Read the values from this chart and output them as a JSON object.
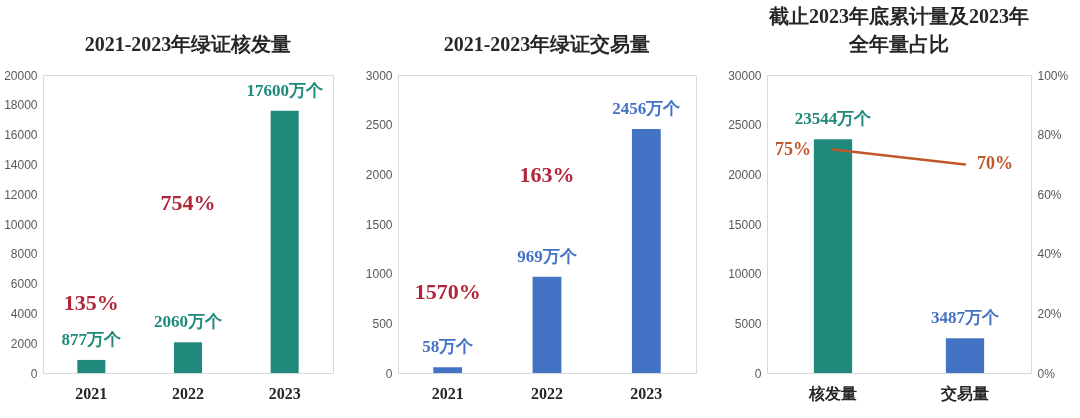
{
  "chart_data": [
    {
      "type": "bar",
      "title": "2021-2023年绿证核发量",
      "categories": [
        "2021",
        "2022",
        "2023"
      ],
      "values": [
        877,
        2060,
        17600
      ],
      "color": "#1f8a7b",
      "value_labels": [
        "877万个",
        "2060万个",
        "17600万个"
      ],
      "ylim": [
        0,
        20000
      ],
      "yticks": [
        0,
        2000,
        4000,
        6000,
        8000,
        10000,
        12000,
        14000,
        16000,
        18000,
        20000
      ],
      "annotations": [
        "135%",
        "754%"
      ]
    },
    {
      "type": "bar",
      "title": "2021-2023年绿证交易量",
      "categories": [
        "2021",
        "2022",
        "2023"
      ],
      "values": [
        58,
        969,
        2456
      ],
      "color": "#4472c4",
      "value_labels": [
        "58万个",
        "969万个",
        "2456万个"
      ],
      "ylim": [
        0,
        3000
      ],
      "yticks": [
        0,
        500,
        1000,
        1500,
        2000,
        2500,
        3000
      ],
      "annotations": [
        "1570%",
        "163%"
      ]
    },
    {
      "type": "bar",
      "title": "截止2023年底累计量及2023年全年量占比",
      "categories": [
        "核发量",
        "交易量"
      ],
      "series": [
        {
          "type": "bar",
          "colors": [
            "#1f8a7b",
            "#4472c4"
          ],
          "values": [
            23544,
            3487
          ],
          "value_labels": [
            "23544万个",
            "3487万个"
          ]
        },
        {
          "type": "line",
          "axis": "y2",
          "color": "#c0562a",
          "values": [
            75,
            70
          ],
          "value_labels": [
            "75%",
            "70%"
          ]
        }
      ],
      "ylim": [
        0,
        30000
      ],
      "yticks": [
        0,
        5000,
        10000,
        15000,
        20000,
        25000,
        30000
      ],
      "y2lim": [
        0,
        100
      ],
      "y2ticks": [
        {
          "value": 0,
          "label": "0%"
        },
        {
          "value": 20,
          "label": "20%"
        },
        {
          "value": 40,
          "label": "40%"
        },
        {
          "value": 60,
          "label": "60%"
        },
        {
          "value": 80,
          "label": "80%"
        },
        {
          "value": 100,
          "label": "100%"
        }
      ]
    }
  ]
}
